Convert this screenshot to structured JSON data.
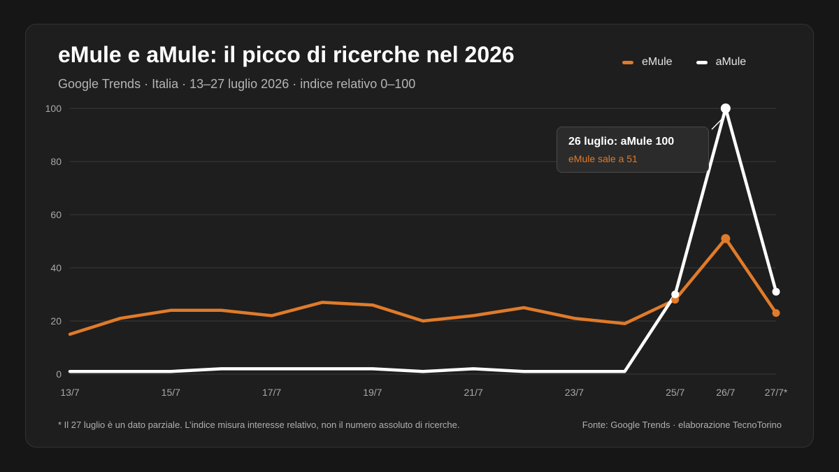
{
  "header": {
    "title": "eMule e aMule: il picco di ricerche nel 2026",
    "subtitle": "Google Trends · Italia · 13–27 luglio 2026 · indice relativo 0–100"
  },
  "legend": {
    "emule": "eMule",
    "amule": "aMule"
  },
  "tooltip": {
    "title": "26 luglio: aMule 100",
    "subtitle": "eMule sale a 51"
  },
  "footer": {
    "note": "* Il 27 luglio è un dato parziale. L’indice misura interesse relativo, non il numero assoluto di ricerche.",
    "source": "Fonte: Google Trends · elaborazione TecnoTorino"
  },
  "colors": {
    "emule": "#e07b2a",
    "amule": "#ffffff",
    "grid": "#3a3a3a",
    "tick": "#a8a8a8",
    "background": "#1e1e1e"
  },
  "chart_data": {
    "type": "line",
    "x": [
      "13/7",
      "14/7",
      "15/7",
      "16/7",
      "17/7",
      "18/7",
      "19/7",
      "20/7",
      "21/7",
      "22/7",
      "23/7",
      "24/7",
      "25/7",
      "26/7",
      "27/7*"
    ],
    "x_tick_labels": [
      "13/7",
      "15/7",
      "17/7",
      "19/7",
      "21/7",
      "23/7",
      "25/7",
      "26/7",
      "27/7*"
    ],
    "series": [
      {
        "name": "eMule",
        "values": [
          15,
          21,
          24,
          24,
          22,
          27,
          26,
          20,
          22,
          25,
          21,
          19,
          28,
          51,
          23
        ]
      },
      {
        "name": "aMule",
        "values": [
          1,
          1,
          1,
          2,
          2,
          2,
          2,
          1,
          2,
          1,
          1,
          1,
          30,
          100,
          31
        ]
      }
    ],
    "ylim": [
      0,
      100
    ],
    "yticks": [
      0,
      20,
      40,
      60,
      80,
      100
    ],
    "grid": true,
    "legend_position": "top-right"
  }
}
